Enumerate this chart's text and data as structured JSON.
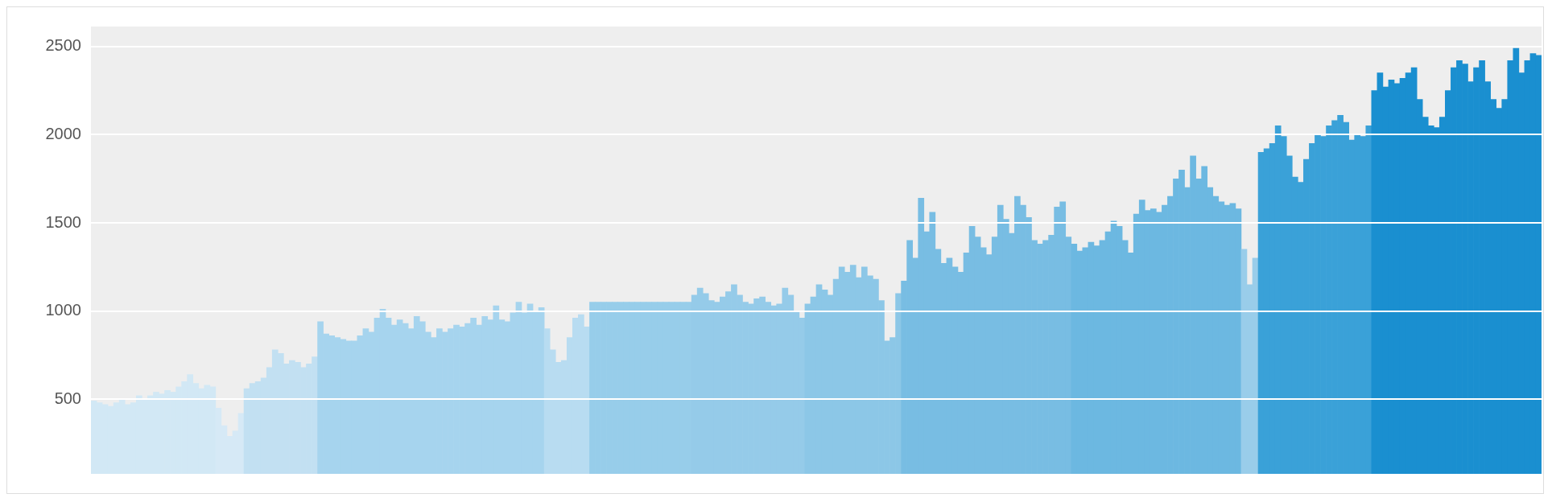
{
  "chart_data": {
    "type": "bar",
    "categories": [
      null,
      null,
      null,
      null,
      null,
      null,
      null,
      null,
      null,
      null,
      null,
      null,
      null,
      null,
      null,
      null,
      null,
      null,
      null,
      null,
      null,
      null,
      null,
      null,
      null,
      null,
      null,
      null,
      null,
      null,
      null,
      null,
      null,
      null,
      null,
      null,
      null,
      null,
      null,
      null,
      null,
      null,
      null,
      null,
      null,
      null,
      null,
      null,
      null,
      null,
      null,
      null,
      null,
      null,
      null,
      null,
      null,
      null,
      null,
      null,
      null,
      null,
      null,
      null,
      null,
      null,
      null,
      null,
      null,
      null,
      null,
      null,
      null,
      null,
      null,
      null,
      null,
      null,
      null,
      null,
      null,
      null,
      null,
      null,
      null,
      null,
      null,
      null,
      null,
      null,
      null,
      null,
      null,
      null,
      null,
      null,
      null,
      null,
      null,
      null,
      null,
      null,
      null,
      null,
      null,
      null,
      null,
      null,
      null,
      null,
      null,
      null,
      null,
      null,
      null,
      null,
      null,
      null,
      null,
      null,
      null,
      null,
      null,
      null,
      null,
      null,
      null,
      null,
      null,
      null,
      null,
      null,
      null,
      null,
      null,
      null,
      null,
      null,
      null,
      null,
      null,
      null,
      null,
      null,
      null,
      null,
      null,
      null,
      null,
      null,
      null,
      null,
      null,
      null,
      null,
      null,
      null,
      null,
      null,
      null,
      null,
      null,
      null,
      null,
      null,
      null,
      null,
      null,
      null,
      null,
      null,
      null,
      null,
      null,
      null,
      null,
      null,
      null,
      null,
      null,
      null,
      null,
      null,
      null,
      null,
      null,
      null,
      null,
      null,
      null,
      null,
      null,
      null,
      null,
      null,
      null,
      null,
      null,
      null,
      null,
      null,
      null,
      null,
      null,
      null,
      null,
      null,
      null,
      null,
      null,
      null,
      null,
      null,
      null,
      null,
      null,
      null,
      null,
      null,
      null,
      null,
      null,
      null,
      null,
      null,
      null,
      null,
      null,
      null,
      null,
      null,
      null,
      null,
      null,
      null,
      null,
      null,
      null,
      null,
      null,
      null,
      null,
      null,
      null,
      null,
      null,
      null,
      null,
      null,
      null,
      null,
      null,
      null,
      null,
      null,
      null
    ],
    "values": [
      490,
      480,
      470,
      460,
      480,
      500,
      470,
      480,
      520,
      500,
      520,
      540,
      530,
      550,
      540,
      570,
      600,
      640,
      590,
      560,
      580,
      570,
      450,
      350,
      290,
      320,
      420,
      560,
      590,
      600,
      620,
      680,
      780,
      760,
      700,
      720,
      710,
      680,
      700,
      740,
      940,
      870,
      860,
      850,
      840,
      830,
      830,
      860,
      900,
      880,
      960,
      1010,
      960,
      920,
      950,
      930,
      900,
      970,
      940,
      880,
      850,
      900,
      880,
      900,
      920,
      910,
      930,
      960,
      920,
      970,
      950,
      1030,
      950,
      940,
      990,
      1050,
      990,
      1040,
      1000,
      1020,
      900,
      780,
      710,
      720,
      850,
      960,
      980,
      910,
      1050,
      1050,
      1050,
      1050,
      1050,
      1050,
      1050,
      1050,
      1050,
      1050,
      1050,
      1050,
      1050,
      1050,
      1050,
      1050,
      1050,
      1050,
      1090,
      1130,
      1100,
      1060,
      1050,
      1080,
      1110,
      1150,
      1090,
      1050,
      1040,
      1070,
      1080,
      1050,
      1030,
      1040,
      1130,
      1090,
      1000,
      960,
      1040,
      1080,
      1150,
      1120,
      1090,
      1180,
      1250,
      1220,
      1260,
      1190,
      1250,
      1200,
      1180,
      1060,
      830,
      850,
      1100,
      1170,
      1400,
      1300,
      1640,
      1450,
      1560,
      1350,
      1270,
      1300,
      1250,
      1220,
      1330,
      1480,
      1420,
      1360,
      1320,
      1420,
      1600,
      1520,
      1440,
      1650,
      1600,
      1530,
      1400,
      1380,
      1400,
      1430,
      1590,
      1620,
      1420,
      1380,
      1340,
      1360,
      1390,
      1370,
      1400,
      1450,
      1510,
      1480,
      1400,
      1330,
      1550,
      1630,
      1570,
      1580,
      1560,
      1600,
      1650,
      1750,
      1800,
      1700,
      1880,
      1750,
      1820,
      1700,
      1650,
      1620,
      1600,
      1610,
      1580,
      1350,
      1150,
      1300,
      1900,
      1920,
      1950,
      2050,
      1990,
      1880,
      1760,
      1730,
      1860,
      1950,
      2000,
      1990,
      2050,
      2080,
      2110,
      2070,
      1970,
      2000,
      1990,
      2050,
      2250,
      2350,
      2270,
      2310,
      2290,
      2320,
      2350,
      2380,
      2200,
      2100,
      2050,
      2040,
      2100,
      2250,
      2380,
      2420,
      2400,
      2300,
      2380,
      2420,
      2300,
      2200,
      2150,
      2200,
      2420,
      2490,
      2350,
      2420,
      2460,
      2450
    ],
    "colors": [
      "#d2e8f5",
      "#d2e8f5",
      "#d2e8f5",
      "#d2e8f5",
      "#d2e8f5",
      "#d2e8f5",
      "#d2e8f5",
      "#d2e8f5",
      "#d2e8f5",
      "#d2e8f5",
      "#d2e8f5",
      "#d2e8f5",
      "#d2e8f5",
      "#d2e8f5",
      "#d2e8f5",
      "#d2e8f5",
      "#d2e8f5",
      "#d2e8f5",
      "#d2e8f5",
      "#d2e8f5",
      "#d2e8f5",
      "#d2e8f5",
      "#d6e9f6",
      "#d6e9f6",
      "#d6e9f6",
      "#d6e9f6",
      "#d6e9f6",
      "#c2e0f2",
      "#c2e0f2",
      "#c2e0f2",
      "#c2e0f2",
      "#c2e0f2",
      "#c2e0f2",
      "#c2e0f2",
      "#c2e0f2",
      "#c2e0f2",
      "#c2e0f2",
      "#c2e0f2",
      "#c2e0f2",
      "#c2e0f2",
      "#a6d4ee",
      "#a6d4ee",
      "#a6d4ee",
      "#a6d4ee",
      "#a6d4ee",
      "#a6d4ee",
      "#a6d4ee",
      "#a6d4ee",
      "#a6d4ee",
      "#a6d4ee",
      "#a6d4ee",
      "#a6d4ee",
      "#a6d4ee",
      "#a6d4ee",
      "#a6d4ee",
      "#a6d4ee",
      "#a6d4ee",
      "#a6d4ee",
      "#a6d4ee",
      "#a6d4ee",
      "#a6d4ee",
      "#a6d4ee",
      "#a6d4ee",
      "#a6d4ee",
      "#a6d4ee",
      "#a6d4ee",
      "#a6d4ee",
      "#a6d4ee",
      "#a6d4ee",
      "#a6d4ee",
      "#a6d4ee",
      "#a6d4ee",
      "#a6d4ee",
      "#a6d4ee",
      "#a6d4ee",
      "#a6d4ee",
      "#a6d4ee",
      "#a6d4ee",
      "#a6d4ee",
      "#a6d4ee",
      "#b8dcf1",
      "#b8dcf1",
      "#b8dcf1",
      "#b8dcf1",
      "#b8dcf1",
      "#b8dcf1",
      "#b8dcf1",
      "#b8dcf1",
      "#97cdea",
      "#97cdea",
      "#97cdea",
      "#97cdea",
      "#97cdea",
      "#97cdea",
      "#97cdea",
      "#97cdea",
      "#97cdea",
      "#97cdea",
      "#97cdea",
      "#97cdea",
      "#97cdea",
      "#97cdea",
      "#97cdea",
      "#97cdea",
      "#97cdea",
      "#97cdea",
      "#95cbe9",
      "#95cbe9",
      "#95cbe9",
      "#95cbe9",
      "#95cbe9",
      "#95cbe9",
      "#95cbe9",
      "#95cbe9",
      "#95cbe9",
      "#95cbe9",
      "#95cbe9",
      "#95cbe9",
      "#95cbe9",
      "#95cbe9",
      "#95cbe9",
      "#95cbe9",
      "#95cbe9",
      "#95cbe9",
      "#95cbe9",
      "#95cbe9",
      "#8cc7e7",
      "#8cc7e7",
      "#8cc7e7",
      "#8cc7e7",
      "#8cc7e7",
      "#8cc7e7",
      "#8cc7e7",
      "#8cc7e7",
      "#8cc7e7",
      "#8cc7e7",
      "#8cc7e7",
      "#8cc7e7",
      "#8cc7e7",
      "#8cc7e7",
      "#8cc7e7",
      "#8cc7e7",
      "#8cc7e7",
      "#78bde3",
      "#78bde3",
      "#78bde3",
      "#78bde3",
      "#78bde3",
      "#78bde3",
      "#78bde3",
      "#78bde3",
      "#78bde3",
      "#78bde3",
      "#78bde3",
      "#78bde3",
      "#78bde3",
      "#78bde3",
      "#78bde3",
      "#78bde3",
      "#78bde3",
      "#78bde3",
      "#78bde3",
      "#78bde3",
      "#78bde3",
      "#78bde3",
      "#78bde3",
      "#78bde3",
      "#78bde3",
      "#78bde3",
      "#78bde3",
      "#78bde3",
      "#78bde3",
      "#78bde3",
      "#6cb8e1",
      "#6cb8e1",
      "#6cb8e1",
      "#6cb8e1",
      "#6cb8e1",
      "#6cb8e1",
      "#6cb8e1",
      "#6cb8e1",
      "#6cb8e1",
      "#6cb8e1",
      "#6cb8e1",
      "#6cb8e1",
      "#6cb8e1",
      "#6cb8e1",
      "#6cb8e1",
      "#6cb8e1",
      "#6cb8e1",
      "#6cb8e1",
      "#6cb8e1",
      "#6cb8e1",
      "#6cb8e1",
      "#6cb8e1",
      "#6cb8e1",
      "#6cb8e1",
      "#6cb8e1",
      "#6cb8e1",
      "#6cb8e1",
      "#6cb8e1",
      "#6cb8e1",
      "#6cb8e1",
      "#99cdea",
      "#99cdea",
      "#99cdea",
      "#3aa1d8",
      "#3aa1d8",
      "#3aa1d8",
      "#3aa1d8",
      "#3aa1d8",
      "#3aa1d8",
      "#3aa1d8",
      "#3aa1d8",
      "#3aa1d8",
      "#3aa1d8",
      "#3aa1d8",
      "#3aa1d8",
      "#3aa1d8",
      "#3aa1d8",
      "#3aa1d8",
      "#3aa1d8",
      "#3aa1d8",
      "#3aa1d8",
      "#3aa1d8",
      "#3aa1d8",
      "#1a8fd0",
      "#1a8fd0",
      "#1a8fd0",
      "#1a8fd0",
      "#1a8fd0",
      "#1a8fd0",
      "#1a8fd0",
      "#1a8fd0",
      "#1a8fd0",
      "#1a8fd0",
      "#1a8fd0",
      "#1a8fd0",
      "#1a8fd0",
      "#1a8fd0",
      "#1a8fd0",
      "#1a8fd0",
      "#1a8fd0",
      "#1a8fd0",
      "#1a8fd0",
      "#1a8fd0",
      "#1a8fd0",
      "#1a8fd0",
      "#1a8fd0",
      "#1a8fd0",
      "#1a8fd0",
      "#1a8fd0",
      "#1a8fd0",
      "#1a8fd0",
      "#1a8fd0",
      "#1a8fd0"
    ],
    "ylim": [
      77,
      2613
    ],
    "yticks": [
      500,
      1000,
      1500,
      2000,
      2500
    ],
    "grid": "y",
    "tick_labels": "y"
  }
}
